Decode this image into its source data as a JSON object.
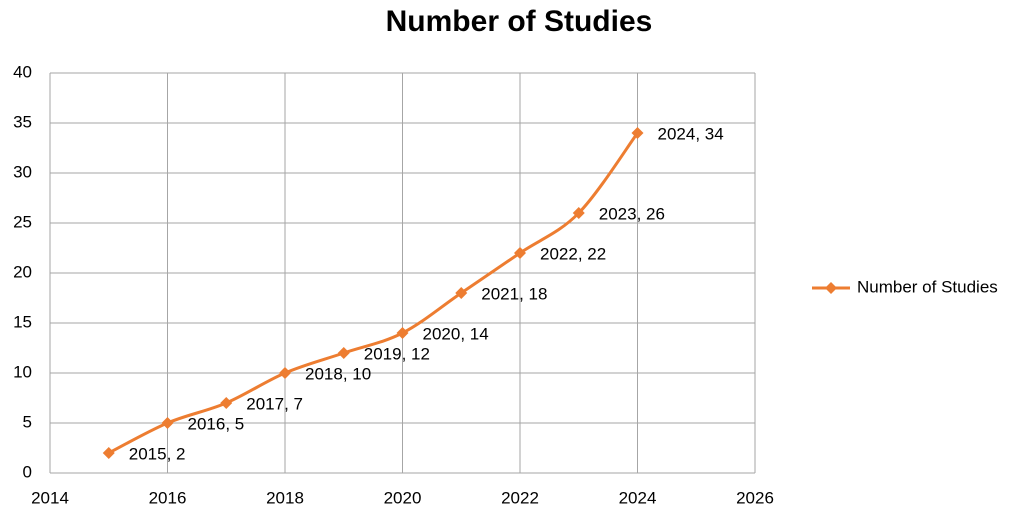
{
  "chart_data": {
    "type": "line",
    "title": "Number of Studies",
    "x": [
      2015,
      2016,
      2017,
      2018,
      2019,
      2020,
      2021,
      2022,
      2023,
      2024
    ],
    "series": [
      {
        "name": "Number of Studies",
        "color": "#ed7d31",
        "values": [
          2,
          5,
          7,
          10,
          12,
          14,
          18,
          22,
          26,
          34
        ],
        "value_labels": [
          "2015, 2",
          "2016, 5",
          "2017, 7",
          "2018, 10",
          "2019, 12",
          "2020, 14",
          "2021, 18",
          "2022, 22",
          "2023, 26",
          "2024, 34"
        ]
      }
    ],
    "xlim": [
      2014,
      2026
    ],
    "xticks": [
      2014,
      2016,
      2018,
      2020,
      2022,
      2024,
      2026
    ],
    "ylim": [
      0,
      40
    ],
    "yticks": [
      0,
      5,
      10,
      15,
      20,
      25,
      30,
      35,
      40
    ],
    "grid": true,
    "smooth": true,
    "legend": "right"
  }
}
